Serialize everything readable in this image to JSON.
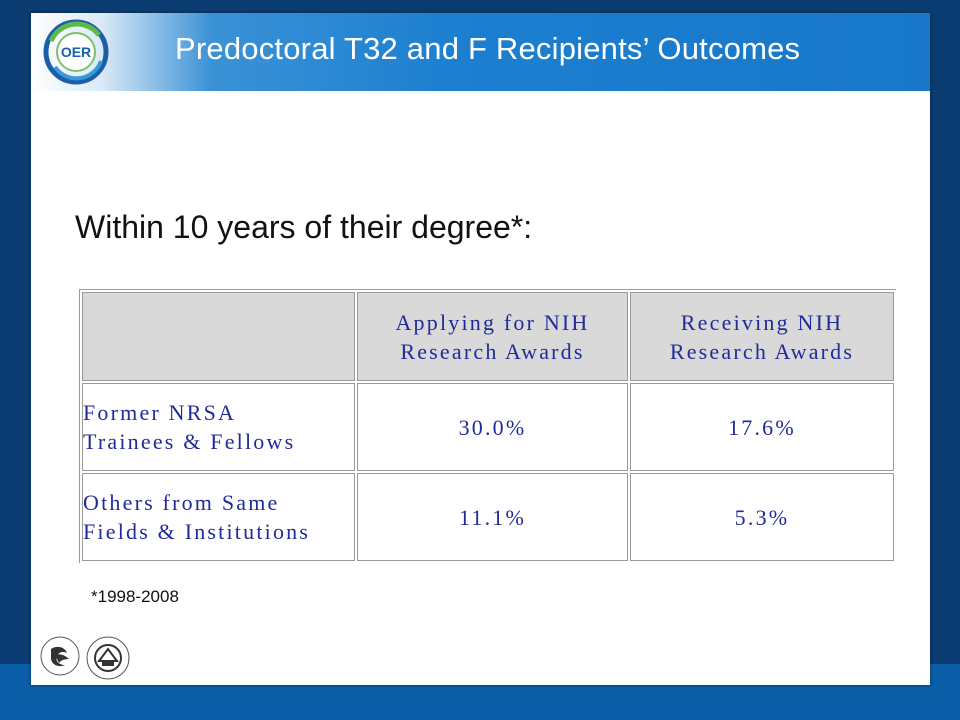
{
  "slide": {
    "title": "Predoctoral T32 and F Recipients’ Outcomes",
    "subtitle": "Within 10 years of their degree*:",
    "footnote": "*1998-2008"
  },
  "logo": {
    "text": "OER"
  },
  "table": {
    "columns": [
      {
        "line1": "Applying for NIH",
        "line2": "Research Awards"
      },
      {
        "line1": "Receiving NIH",
        "line2": "Research Awards"
      }
    ],
    "rows": [
      {
        "line1": "Former NRSA",
        "line2": "Trainees & Fellows",
        "applying": "30.0%",
        "receiving": "17.6%"
      },
      {
        "line1": "Others from Same",
        "line2": "Fields & Institutions",
        "applying": "11.1%",
        "receiving": "5.3%"
      }
    ]
  },
  "seals": {
    "hhs": "DEPARTMENT OF HEALTH & HUMAN SERVICES · USA",
    "nih": "NATIONAL INSTITUTES OF HEALTH"
  }
}
